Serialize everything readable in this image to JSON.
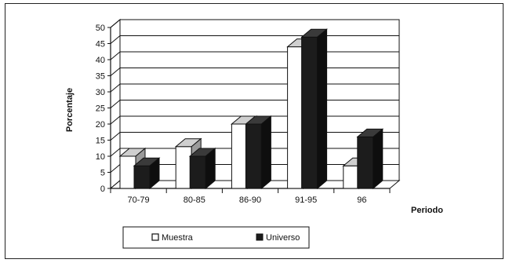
{
  "chart_data": {
    "type": "bar",
    "categories": [
      "70-79",
      "80-85",
      "86-90",
      "91-95",
      "96"
    ],
    "series": [
      {
        "name": "Muestra",
        "values": [
          10,
          13,
          20,
          44,
          7
        ]
      },
      {
        "name": "Universo",
        "values": [
          7,
          10,
          20,
          47,
          16
        ]
      }
    ],
    "xlabel": "Periodo",
    "ylabel": "Porcentaje",
    "ylim": [
      0,
      50
    ],
    "yticks": [
      "0",
      "5",
      "10",
      "15",
      "20",
      "25",
      "30",
      "35",
      "40",
      "45",
      "50"
    ],
    "grid": true,
    "legend_position": "bottom",
    "colors": {
      "Muestra": "#ffffff",
      "Universo": "#1c1c1c"
    }
  }
}
